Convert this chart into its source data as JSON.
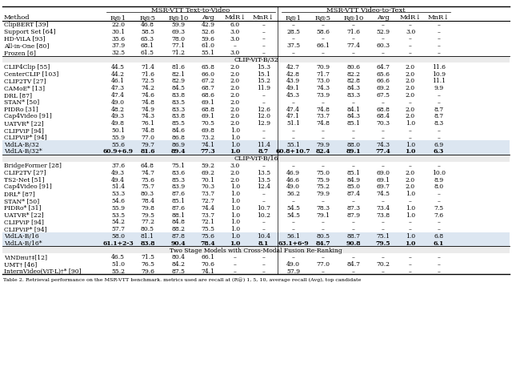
{
  "caption": "Table 2. Retrieval performance on the MSR-VTT benchmark. metrics used are recall at (R@) 1, 5, 10, average recall (Avg), top candidate",
  "header_row2": [
    "Method",
    "R@1",
    "R@5",
    "R@10",
    "Avg",
    "MdR↓",
    "MnR↓",
    "R@1",
    "R@5",
    "R@10",
    "Avg",
    "MdR↓",
    "MnR↓"
  ],
  "section_clipvitb32": "CLIP-ViT-B/32",
  "section_clipvitb16": "CLIP-ViT-B/16",
  "section_twostage": "Two Stage Models with Cross-Modal Fusion Re-Ranking",
  "rows_top": [
    [
      "ClipBERT [39]",
      "22.0",
      "46.8",
      "59.9",
      "42.9",
      "6.0",
      "–",
      "–",
      "–",
      "–",
      "–",
      "–",
      "–"
    ],
    [
      "Support Set [64]",
      "30.1",
      "58.5",
      "69.3",
      "52.6",
      "3.0",
      "–",
      "28.5",
      "58.6",
      "71.6",
      "52.9",
      "3.0",
      "–"
    ],
    [
      "HD-ViLA [93]",
      "35.6",
      "65.3",
      "78.0",
      "59.6",
      "3.0",
      "–",
      "–",
      "–",
      "–",
      "–",
      "–",
      "–"
    ],
    [
      "All-in-One [80]",
      "37.9",
      "68.1",
      "77.1",
      "61.0",
      "–",
      "–",
      "37.5",
      "66.1",
      "77.4",
      "60.3",
      "–",
      "–"
    ],
    [
      "Frozen [6]",
      "32.5",
      "61.5",
      "71.2",
      "55.1",
      "3.0",
      "–",
      "–",
      "–",
      "–",
      "–",
      "–",
      "–"
    ]
  ],
  "rows_b32": [
    [
      "CLIP4Clip [55]",
      "44.5",
      "71.4",
      "81.6",
      "65.8",
      "2.0",
      "15.3",
      "42.7",
      "70.9",
      "80.6",
      "64.7",
      "2.0",
      "11.6"
    ],
    [
      "CenterCLIP [103]",
      "44.2",
      "71.6",
      "82.1",
      "66.0",
      "2.0",
      "15.1",
      "42.8",
      "71.7",
      "82.2",
      "65.6",
      "2.0",
      "10.9"
    ],
    [
      "CLIP2TV [27]",
      "46.1",
      "72.5",
      "82.9",
      "67.2",
      "2.0",
      "15.2",
      "43.9",
      "73.0",
      "82.8",
      "66.6",
      "2.0",
      "11.1"
    ],
    [
      "CAMoE* [13]",
      "47.3",
      "74.2",
      "84.5",
      "68.7",
      "2.0",
      "11.9",
      "49.1",
      "74.3",
      "84.3",
      "69.2",
      "2.0",
      "9.9"
    ],
    [
      "DRL [87]",
      "47.4",
      "74.6",
      "83.8",
      "68.6",
      "2.0",
      "–",
      "45.3",
      "73.9",
      "83.3",
      "67.5",
      "2.0",
      "–"
    ],
    [
      "STAN* [50]",
      "49.0",
      "74.8",
      "83.5",
      "69.1",
      "2.0",
      "–",
      "–",
      "–",
      "–",
      "–",
      "–",
      "–"
    ],
    [
      "PIDRo [31]",
      "48.2",
      "74.9",
      "83.3",
      "68.8",
      "2.0",
      "12.6",
      "47.4",
      "74.8",
      "84.1",
      "68.8",
      "2.0",
      "8.7"
    ],
    [
      "Cap4Video [91]",
      "49.3",
      "74.3",
      "83.8",
      "69.1",
      "2.0",
      "12.0",
      "47.1",
      "73.7",
      "84.3",
      "68.4",
      "2.0",
      "8.7"
    ],
    [
      "UATVR* [22]",
      "49.8",
      "76.1",
      "85.5",
      "70.5",
      "2.0",
      "12.9",
      "51.1",
      "74.8",
      "85.1",
      "70.3",
      "1.0",
      "8.3"
    ],
    [
      "CLIPViP [94]",
      "50.1",
      "74.8",
      "84.6",
      "69.8",
      "1.0",
      "–",
      "–",
      "–",
      "–",
      "–",
      "–",
      "–"
    ],
    [
      "CLIPViP* [94]",
      "55.9",
      "77.0",
      "86.8",
      "73.2",
      "1.0",
      "–",
      "–",
      "–",
      "–",
      "–",
      "–",
      "–"
    ],
    [
      "VidLA-B/32",
      "55.6",
      "79.7",
      "86.9",
      "74.1",
      "1.0",
      "11.4",
      "55.1",
      "79.9",
      "88.0",
      "74.3",
      "1.0",
      "6.9"
    ],
    [
      "VidLA-B/32*",
      "60.9+6.9",
      "81.6",
      "89.4",
      "77.3",
      "1.0",
      "8.7",
      "60.8+10.7",
      "82.4",
      "89.1",
      "77.4",
      "1.0",
      "6.3"
    ]
  ],
  "rows_b16": [
    [
      "BridgeFormer [28]",
      "37.6",
      "64.8",
      "75.1",
      "59.2",
      "3.0",
      "–",
      "–",
      "–",
      "–",
      "–",
      "–",
      "–"
    ],
    [
      "CLIP2TV [27]",
      "49.3",
      "74.7",
      "83.6",
      "69.2",
      "2.0",
      "13.5",
      "46.9",
      "75.0",
      "85.1",
      "69.0",
      "2.0",
      "10.0"
    ],
    [
      "TS2-Net [51]",
      "49.4",
      "75.6",
      "85.3",
      "70.1",
      "2.0",
      "13.5",
      "46.6",
      "75.9",
      "84.9",
      "69.1",
      "2.0",
      "8.9"
    ],
    [
      "Cap4Video [91]",
      "51.4",
      "75.7",
      "83.9",
      "70.3",
      "1.0",
      "12.4",
      "49.0",
      "75.2",
      "85.0",
      "69.7",
      "2.0",
      "8.0"
    ],
    [
      "DRL* [87]",
      "53.3",
      "80.3",
      "87.6",
      "73.7",
      "1.0",
      "–",
      "56.2",
      "79.9",
      "87.4",
      "74.5",
      "1.0",
      "–"
    ],
    [
      "STAN* [50]",
      "54.6",
      "78.4",
      "85.1",
      "72.7",
      "1.0",
      "–",
      "–",
      "–",
      "–",
      "–",
      "–",
      "–"
    ],
    [
      "PIDRo* [31]",
      "55.9",
      "79.8",
      "87.6",
      "74.4",
      "1.0",
      "10.7",
      "54.5",
      "78.3",
      "87.3",
      "73.4",
      "1.0",
      "7.5"
    ],
    [
      "UATVR* [22]",
      "53.5",
      "79.5",
      "88.1",
      "73.7",
      "1.0",
      "10.2",
      "54.5",
      "79.1",
      "87.9",
      "73.8",
      "1.0",
      "7.6"
    ],
    [
      "CLIPViP [94]",
      "54.2",
      "77.2",
      "84.8",
      "72.1",
      "1.0",
      "–",
      "–",
      "–",
      "–",
      "–",
      "–",
      "–"
    ],
    [
      "CLIPViP* [94]",
      "57.7",
      "80.5",
      "88.2",
      "75.5",
      "1.0",
      "–",
      "–",
      "–",
      "–",
      "–",
      "–",
      "–"
    ],
    [
      "VidLA-B/16",
      "58.0",
      "81.1",
      "87.8",
      "75.6",
      "1.0",
      "10.4",
      "56.1",
      "80.5",
      "88.7",
      "75.1",
      "1.0",
      "6.8"
    ],
    [
      "VidLA-B/16*",
      "61.1+2-3",
      "83.8",
      "90.4",
      "78.4",
      "1.0",
      "8.1",
      "63.1+6-9",
      "84.7",
      "90.8",
      "79.5",
      "1.0",
      "6.1"
    ]
  ],
  "rows_twostage": [
    [
      "VɪNDʜu†‡[12]",
      "46.5",
      "71.5",
      "80.4",
      "66.1",
      "–",
      "–",
      "–",
      "–",
      "–",
      "–",
      "–",
      "–"
    ],
    [
      "UMT† [46]",
      "51.0",
      "76.5",
      "84.2",
      "70.6",
      "–",
      "–",
      "49.0",
      "77.0",
      "84.7",
      "70.2",
      "–",
      "–"
    ],
    [
      "InternVideo(ViT-L)†* [90]",
      "55.2",
      "79.6",
      "87.5",
      "74.1",
      "–",
      "–",
      "57.9",
      "–",
      "–",
      "–",
      "–",
      "–"
    ]
  ],
  "bg_color_highlight": "#dce6f1",
  "bg_color_section": "#ebebeb"
}
